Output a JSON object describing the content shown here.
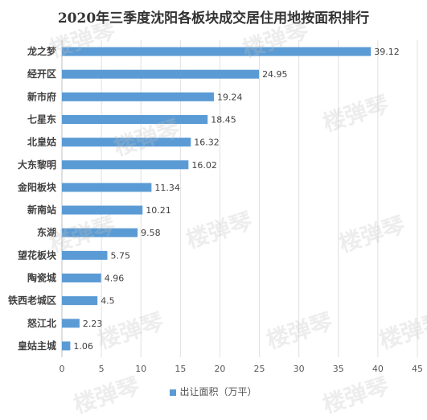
{
  "chart_data": {
    "type": "bar",
    "orientation": "horizontal",
    "title": "2020年三季度沈阳各板块成交居住用地按面积排行",
    "categories": [
      "龙之梦",
      "经开区",
      "新市府",
      "七星东",
      "北皇姑",
      "大东黎明",
      "金阳板块",
      "新南站",
      "东湖",
      "望花板块",
      "陶瓷城",
      "铁西老城区",
      "怒江北",
      "皇姑主城"
    ],
    "series": [
      {
        "name": "出让面积（万平）",
        "values": [
          39.12,
          24.95,
          19.24,
          18.45,
          16.32,
          16.02,
          11.34,
          10.21,
          9.58,
          5.75,
          4.96,
          4.5,
          2.23,
          1.06
        ],
        "labels": [
          "39.12",
          "24.95",
          "19.24",
          "18.45",
          "16.32",
          "16.02",
          "11.34",
          "10.21",
          "9.58",
          "5.75",
          "4.96",
          "4.5",
          "2.23",
          "1.06"
        ]
      }
    ],
    "xlim": [
      0,
      45
    ],
    "xticks": [
      "0",
      "5",
      "10",
      "15",
      "20",
      "25",
      "30",
      "35",
      "40",
      "45"
    ],
    "grid": "vertical",
    "legend_position": "bottom",
    "bar_color": "#5b9bd5"
  },
  "watermark_text": "楼弹琴"
}
